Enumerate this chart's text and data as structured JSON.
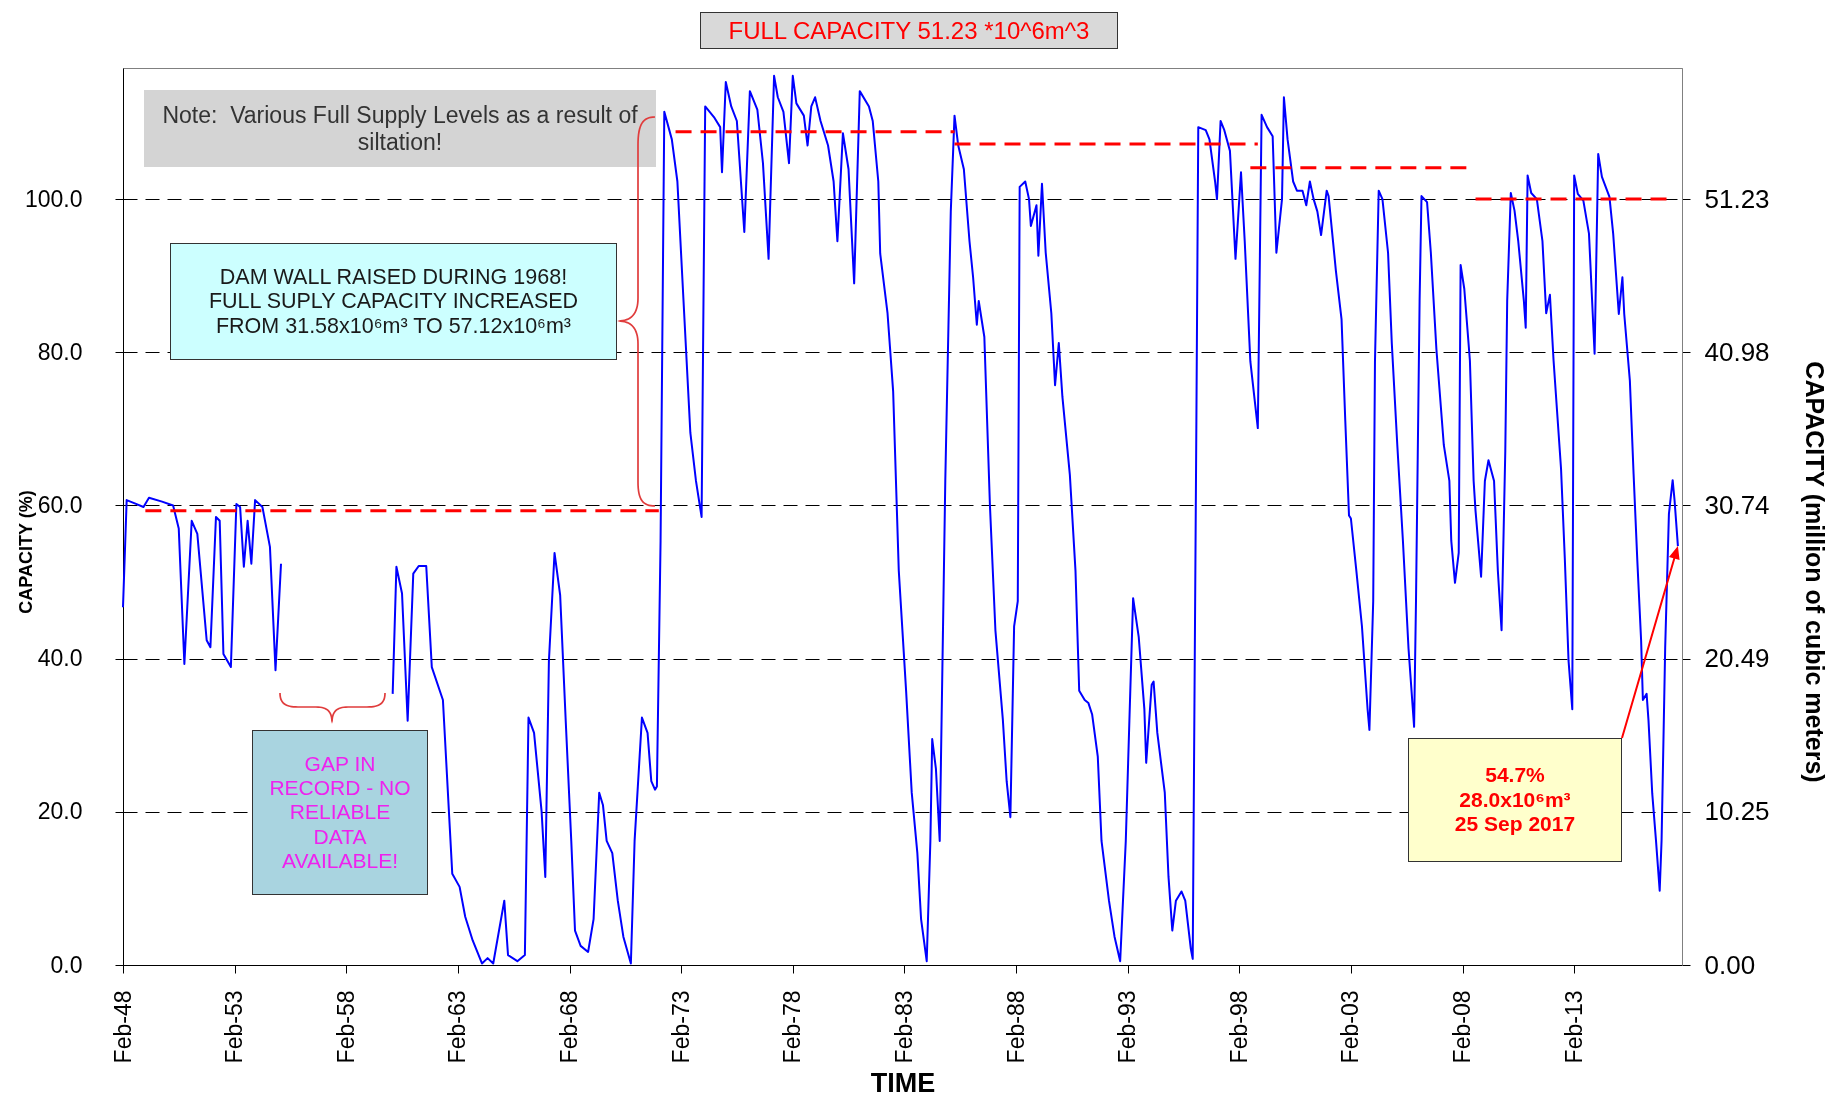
{
  "chart_data": {
    "type": "line",
    "title": "FULL CAPACITY 51.23 *10^6m^3",
    "xlabel": "TIME",
    "ylabel": "CAPACITY (%)",
    "y2label": "CAPACITY (million of cubic meters)",
    "xlim": [
      "1948-02",
      "2017-12"
    ],
    "ylim": [
      0,
      117.12
    ],
    "y2lim": [
      0,
      60
    ],
    "xticks": [
      {
        "value": "1948-02",
        "label": "Feb-48"
      },
      {
        "value": "1953-02",
        "label": "Feb-53"
      },
      {
        "value": "1958-02",
        "label": "Feb-58"
      },
      {
        "value": "1963-02",
        "label": "Feb-63"
      },
      {
        "value": "1968-02",
        "label": "Feb-68"
      },
      {
        "value": "1973-02",
        "label": "Feb-73"
      },
      {
        "value": "1978-02",
        "label": "Feb-78"
      },
      {
        "value": "1983-02",
        "label": "Feb-83"
      },
      {
        "value": "1988-02",
        "label": "Feb-88"
      },
      {
        "value": "1993-02",
        "label": "Feb-93"
      },
      {
        "value": "1998-02",
        "label": "Feb-98"
      },
      {
        "value": "2003-02",
        "label": "Feb-03"
      },
      {
        "value": "2008-02",
        "label": "Feb-08"
      },
      {
        "value": "2013-02",
        "label": "Feb-13"
      }
    ],
    "yticks": [
      {
        "value": 0,
        "label": "0.0"
      },
      {
        "value": 20,
        "label": "20.0"
      },
      {
        "value": 40,
        "label": "40.0"
      },
      {
        "value": 60,
        "label": "60.0"
      },
      {
        "value": 80,
        "label": "80.0"
      },
      {
        "value": 100,
        "label": "100.0"
      }
    ],
    "y2ticks": [
      {
        "value": 0,
        "label": "0.00"
      },
      10.25,
      20.49,
      30.74,
      40.98,
      51.23
    ],
    "grid": "y",
    "line_style": "solid",
    "series": [
      {
        "color": "#0000ff",
        "x": [
          "1948-02",
          "1948-04",
          "1948-09",
          "1949-01",
          "1949-04",
          "1949-11",
          "1950-05",
          "1950-08",
          "1950-11",
          "1951-03",
          "1951-06",
          "1951-11",
          "1952-01",
          "1952-04",
          "1952-06",
          "1952-08",
          "1952-12",
          "1953-03",
          "1953-05",
          "1953-07",
          "1953-09",
          "1953-11",
          "1954-01",
          "1954-05",
          "1954-09",
          "1954-12",
          "1955-03",
          "1957-09",
          "1960-03",
          "1960-05",
          "1960-08",
          "1960-11",
          "1961-02",
          "1961-05",
          "1961-09",
          "1961-12",
          "1962-06",
          "1962-11",
          "1963-03",
          "1963-06",
          "1963-10",
          "1964-03",
          "1964-06",
          "1964-09",
          "1965-03",
          "1965-05",
          "1965-10",
          "1966-02",
          "1966-04",
          "1966-07",
          "1966-11",
          "1967-01",
          "1967-03",
          "1967-06",
          "1967-09",
          "1967-12",
          "1968-03",
          "1968-05",
          "1968-08",
          "1968-12",
          "1969-03",
          "1969-06",
          "1969-08",
          "1969-10",
          "1970-01",
          "1970-04",
          "1970-07",
          "1970-11",
          "1971-01",
          "1971-05",
          "1971-08",
          "1971-10",
          "1971-12",
          "1972-01",
          "1972-03",
          "1972-05",
          "1972-09",
          "1972-12",
          "1973-03",
          "1973-07",
          "1973-10",
          "1974-01",
          "1974-03",
          "1974-08",
          "1974-11",
          "1974-12",
          "1975-02",
          "1975-05",
          "1975-08",
          "1975-12",
          "1976-03",
          "1976-07",
          "1976-10",
          "1977-01",
          "1977-04",
          "1977-06",
          "1977-09",
          "1977-12",
          "1978-02",
          "1978-04",
          "1978-08",
          "1978-10",
          "1978-12",
          "1979-02",
          "1979-05",
          "1979-09",
          "1979-12",
          "1980-02",
          "1980-05",
          "1980-08",
          "1980-11",
          "1981-02",
          "1981-07",
          "1981-09",
          "1981-12",
          "1982-01",
          "1982-05",
          "1982-08",
          "1982-11",
          "1983-03",
          "1983-06",
          "1983-09",
          "1983-11",
          "1984-02",
          "1984-04",
          "1984-05",
          "1984-07",
          "1984-09",
          "1984-12",
          "1985-03",
          "1985-05",
          "1985-07",
          "1985-10",
          "1986-01",
          "1986-03",
          "1986-05",
          "1986-06",
          "1986-09",
          "1986-12",
          "1987-03",
          "1987-07",
          "1987-09",
          "1987-11",
          "1988-01",
          "1988-03",
          "1988-04",
          "1988-07",
          "1988-09",
          "1988-10",
          "1989-01",
          "1989-02",
          "1989-04",
          "1989-06",
          "1989-09",
          "1989-11",
          "1990-01",
          "1990-03",
          "1990-07",
          "1990-10",
          "1990-12",
          "1991-03",
          "1991-05",
          "1991-07",
          "1991-10",
          "1991-12",
          "1992-04",
          "1992-07",
          "1992-10",
          "1993-01",
          "1993-03",
          "1993-05",
          "1993-08",
          "1993-11",
          "1993-12",
          "1994-03",
          "1994-04",
          "1994-06",
          "1994-10",
          "1994-12",
          "1995-02",
          "1995-04",
          "1995-07",
          "1995-09",
          "1995-12",
          "1996-01",
          "1996-03",
          "1996-04",
          "1996-08",
          "1996-10",
          "1997-01",
          "1997-02",
          "1997-04",
          "1997-06",
          "1997-09",
          "1997-12",
          "1998-03",
          "1998-05",
          "1998-08",
          "1998-12",
          "1999-02",
          "1999-05",
          "1999-08",
          "1999-10",
          "2000-01",
          "2000-02",
          "2000-04",
          "2000-07",
          "2000-09",
          "2000-12",
          "2001-02",
          "2001-04",
          "2001-06",
          "2001-08",
          "2001-10",
          "2002-01",
          "2002-02",
          "2002-06",
          "2002-09",
          "2002-11",
          "2003-01",
          "2003-02",
          "2003-05",
          "2003-08",
          "2003-11",
          "2003-12",
          "2004-02",
          "2004-03",
          "2004-05",
          "2004-07",
          "2004-10",
          "2004-12",
          "2005-03",
          "2005-06",
          "2005-09",
          "2005-12",
          "2006-01",
          "2006-03",
          "2006-04",
          "2006-07",
          "2006-09",
          "2006-12",
          "2007-04",
          "2007-07",
          "2007-08",
          "2007-10",
          "2007-12",
          "2008-01",
          "2008-03",
          "2008-06",
          "2008-08",
          "2008-09",
          "2008-12",
          "2009-02",
          "2009-04",
          "2009-07",
          "2009-09",
          "2009-11",
          "2010-01",
          "2010-02",
          "2010-04",
          "2010-06",
          "2010-08",
          "2010-11",
          "2010-12",
          "2011-01",
          "2011-03",
          "2011-06",
          "2011-09",
          "2011-11",
          "2012-01",
          "2012-03",
          "2012-07",
          "2012-09",
          "2012-11",
          "2013-01",
          "2013-02",
          "2013-04",
          "2013-07",
          "2013-10",
          "2014-01",
          "2014-03",
          "2014-05",
          "2014-09",
          "2014-11",
          "2015-02",
          "2015-04",
          "2015-05",
          "2015-08",
          "2015-10",
          "2015-12",
          "2016-02",
          "2016-03",
          "2016-05",
          "2016-06",
          "2016-08",
          "2016-10",
          "2016-12",
          "2017-01",
          "2017-03",
          "2017-05",
          "2017-07",
          "2017-08",
          "2017-09-25"
        ],
        "values": [
          46.7,
          60.7,
          60.2,
          59.8,
          61.0,
          60.5,
          60.0,
          57.0,
          39.3,
          58.0,
          56.3,
          42.4,
          41.5,
          58.5,
          58.0,
          40.6,
          38.9,
          60.2,
          59.8,
          52.0,
          58.0,
          52.4,
          60.7,
          59.8,
          54.6,
          38.5,
          52.4,
          null,
          35.4,
          52.0,
          48.5,
          31.9,
          51.1,
          52.1,
          52.1,
          38.9,
          34.6,
          11.9,
          10.2,
          6.3,
          3.2,
          0.2,
          0.9,
          0.2,
          8.4,
          1.3,
          0.5,
          1.3,
          32.3,
          30.3,
          20.1,
          11.5,
          39.7,
          53.8,
          48.3,
          31.9,
          16.2,
          4.5,
          2.5,
          1.7,
          6.0,
          22.5,
          20.9,
          16.2,
          14.6,
          8.4,
          3.7,
          0.2,
          16.2,
          32.3,
          30.3,
          24.0,
          22.9,
          23.3,
          55.4,
          111.4,
          107.8,
          102.3,
          88.3,
          69.5,
          63.2,
          58.5,
          112.1,
          110.6,
          109.4,
          103.5,
          115.3,
          112.1,
          110.2,
          95.7,
          114.1,
          111.7,
          104.7,
          92.2,
          116.1,
          113.3,
          111.4,
          104.7,
          116.1,
          112.5,
          110.9,
          107.0,
          112.1,
          113.3,
          110.2,
          107.0,
          102.3,
          94.5,
          108.6,
          103.9,
          89.0,
          114.1,
          112.1,
          110.2,
          102.3,
          92.9,
          85.1,
          74.9,
          51.5,
          35.8,
          22.5,
          14.6,
          6.0,
          0.5,
          16.2,
          29.5,
          25.6,
          16.2,
          63.2,
          98.4,
          110.9,
          107.0,
          103.9,
          94.5,
          89.8,
          83.6,
          86.7,
          82.0,
          60.1,
          43.7,
          32.0,
          24.0,
          19.3,
          44.2,
          47.5,
          101.6,
          102.3,
          100.0,
          96.5,
          99.2,
          92.6,
          102.0,
          93.0,
          85.1,
          75.7,
          81.2,
          74.2,
          64.0,
          51.5,
          35.8,
          34.6,
          34.2,
          32.7,
          27.2,
          16.2,
          8.4,
          3.7,
          0.5,
          16.2,
          31.9,
          47.9,
          42.8,
          33.4,
          26.4,
          36.6,
          37.0,
          30.3,
          22.5,
          11.5,
          4.5,
          8.4,
          9.6,
          8.4,
          2.1,
          0.8,
          71.0,
          109.4,
          109.0,
          107.8,
          102.3,
          100.0,
          110.2,
          109.0,
          106.3,
          92.2,
          103.5,
          94.5,
          78.8,
          70.1,
          111.0,
          109.4,
          108.2,
          93.0,
          100.0,
          113.3,
          107.8,
          102.3,
          101.1,
          101.1,
          99.2,
          102.3,
          100.0,
          98.4,
          95.3,
          101.1,
          100.4,
          90.6,
          84.3,
          71.1,
          58.7,
          58.3,
          51.5,
          44.2,
          33.4,
          30.7,
          47.5,
          78.9,
          101.1,
          100.0,
          93.0,
          81.2,
          67.9,
          55.4,
          41.3,
          31.1,
          47.5,
          86.7,
          100.4,
          99.6,
          93.0,
          80.4,
          67.9,
          63.2,
          55.4,
          49.9,
          53.8,
          91.4,
          88.3,
          78.9,
          63.2,
          59.3,
          50.7,
          63.2,
          65.9,
          63.2,
          51.5,
          43.7,
          67.1,
          86.7,
          100.8,
          98.5,
          94.5,
          86.7,
          83.2,
          103.1,
          100.8,
          100.0,
          94.5,
          85.1,
          87.5,
          78.9,
          64.8,
          53.0,
          39.7,
          33.4,
          103.1,
          100.7,
          99.8,
          95.5,
          79.8,
          105.9,
          102.9,
          100.3,
          95.5,
          85.0,
          89.8,
          85.0,
          76.3,
          64.1,
          52.8,
          42.4,
          34.6,
          35.4,
          31.9,
          22.4,
          16.3,
          9.7,
          16.3,
          41.5,
          58.9,
          63.3,
          60.7,
          54.7
        ]
      },
      {
        "color": "#ff0000",
        "line_style": "dashed",
        "x": [
          "1949-02",
          "1972-02"
        ],
        "values": [
          59.3,
          59.3
        ]
      },
      {
        "color": "#ff0000",
        "line_style": "dashed",
        "x": [
          "1972-11",
          "1985-05"
        ],
        "values": [
          108.8,
          108.8
        ]
      },
      {
        "color": "#ff0000",
        "line_style": "dashed",
        "x": [
          "1985-05",
          "1998-12"
        ],
        "values": [
          107.2,
          107.2
        ]
      },
      {
        "color": "#ff0000",
        "line_style": "dashed",
        "x": [
          "1998-08",
          "2008-05"
        ],
        "values": [
          104.1,
          104.1
        ]
      },
      {
        "color": "#ff0000",
        "line_style": "dashed",
        "x": [
          "2008-09",
          "2017-06"
        ],
        "values": [
          100.0,
          100.0
        ]
      }
    ],
    "annotations": [
      "Note:  Various Full Supply Levels as a result of\nsiltation!",
      "DAM WALL RAISED DURING 1968!\nFULL SUPLY CAPACITY INCREASED\nFROM 31.58x10⁶m³ TO 57.12x10⁶m³",
      "GAP IN\nRECORD - NO\nRELIABLE\nDATA\nAVAILABLE!",
      "54.7%\n28.0x10⁶m³\n25 Sep 2017"
    ]
  }
}
